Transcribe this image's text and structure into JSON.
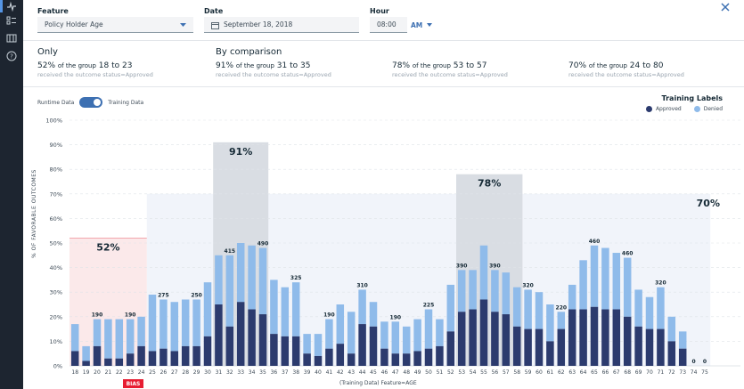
{
  "header": {
    "feature_label": "Feature",
    "feature_value": "Policy Holder Age",
    "date_label": "Date",
    "date_value": "September 18, 2018",
    "hour_label": "Hour",
    "hour_value": "08:00",
    "ampm_value": "AM"
  },
  "summary": {
    "only_title": "Only",
    "only": {
      "pct": "52%",
      "text": "of the group",
      "range": "18 to 23",
      "sub": "received the outcome status=Approved"
    },
    "comparison_title": "By comparison",
    "comparisons": [
      {
        "pct": "91%",
        "text": "of the group",
        "range": "31 to 35",
        "sub": "received the outcome status=Approved"
      },
      {
        "pct": "78%",
        "text": "of the group",
        "range": "53 to 57",
        "sub": "received the outcome status=Approved"
      },
      {
        "pct": "70%",
        "text": "of the group",
        "range": "24 to 80",
        "sub": "received the outcome status=Approved"
      }
    ]
  },
  "controls": {
    "runtime_label": "Runtime Data",
    "training_label": "Training Data",
    "toggle_on": true
  },
  "legend": {
    "title": "Training Labels",
    "items": [
      {
        "label": "Approved",
        "color": "#2c3b6e"
      },
      {
        "label": "Denied",
        "color": "#8fbbea"
      }
    ]
  },
  "chart_data": {
    "type": "bar",
    "stacked": true,
    "ylabel": "% OF FAVORABLE OUTCOMES",
    "xlabel": "(Training Data) Feature=AGE",
    "bias_label": "BIAS",
    "yticks": [
      "0%",
      "10%",
      "20%",
      "30%",
      "40%",
      "50%",
      "60%",
      "70%",
      "80%",
      "90%",
      "100%"
    ],
    "ylim": [
      0,
      100
    ],
    "grid": true,
    "categories": [
      "18",
      "19",
      "20",
      "21",
      "22",
      "23",
      "24",
      "25",
      "26",
      "27",
      "28",
      "29",
      "30",
      "31",
      "32",
      "33",
      "34",
      "35",
      "36",
      "37",
      "38",
      "39",
      "40",
      "41",
      "42",
      "43",
      "44",
      "45",
      "46",
      "47",
      "48",
      "49",
      "50",
      "51",
      "52",
      "53",
      "54",
      "55",
      "56",
      "57",
      "58",
      "59",
      "60",
      "61",
      "62",
      "63",
      "64",
      "65",
      "66",
      "67",
      "68",
      "69",
      "70",
      "71",
      "72",
      "73",
      "74",
      "75"
    ],
    "series": [
      {
        "name": "Approved",
        "color": "#2c3b6e",
        "values": [
          6,
          2,
          8,
          3,
          3,
          5,
          8,
          6,
          7,
          6,
          8,
          8,
          12,
          25,
          16,
          26,
          23,
          21,
          13,
          12,
          12,
          5,
          4,
          7,
          9,
          5,
          17,
          16,
          7,
          5,
          5,
          6,
          7,
          8,
          14,
          22,
          23,
          27,
          22,
          21,
          16,
          15,
          15,
          10,
          15,
          23,
          23,
          24,
          23,
          23,
          20,
          16,
          15,
          15,
          10,
          7,
          0,
          0
        ]
      },
      {
        "name": "Denied",
        "color": "#8fbbea",
        "values": [
          11,
          6,
          11,
          16,
          16,
          14,
          12,
          23,
          20,
          20,
          19,
          19,
          22,
          20,
          29,
          24,
          26,
          27,
          22,
          20,
          22,
          8,
          9,
          12,
          16,
          17,
          14,
          10,
          11,
          13,
          11,
          13,
          16,
          11,
          19,
          17,
          16,
          22,
          17,
          17,
          16,
          16,
          15,
          15,
          7,
          10,
          20,
          25,
          25,
          23,
          24,
          15,
          13,
          17,
          10,
          7,
          0,
          0
        ]
      }
    ],
    "bar_labels": [
      {
        "category": "20",
        "text": "190"
      },
      {
        "category": "23",
        "text": "190"
      },
      {
        "category": "26",
        "text": "275"
      },
      {
        "category": "29",
        "text": "250"
      },
      {
        "category": "32",
        "text": "415"
      },
      {
        "category": "35",
        "text": "490"
      },
      {
        "category": "38",
        "text": "325"
      },
      {
        "category": "41",
        "text": "190"
      },
      {
        "category": "44",
        "text": "310"
      },
      {
        "category": "47",
        "text": "190"
      },
      {
        "category": "50",
        "text": "225"
      },
      {
        "category": "53",
        "text": "390"
      },
      {
        "category": "56",
        "text": "390"
      },
      {
        "category": "59",
        "text": "320"
      },
      {
        "category": "62",
        "text": "220"
      },
      {
        "category": "65",
        "text": "460"
      },
      {
        "category": "68",
        "text": "460"
      },
      {
        "category": "71",
        "text": "320"
      },
      {
        "category": "74",
        "text": "0"
      },
      {
        "category": "75",
        "text": "0"
      }
    ],
    "regions": [
      {
        "from": "18",
        "to": "24",
        "value": 52,
        "label": "52%",
        "style": "bias"
      },
      {
        "from": "31",
        "to": "35",
        "value": 91,
        "label": "91%",
        "style": "compare"
      },
      {
        "from": "53",
        "to": "58",
        "value": 78,
        "label": "78%",
        "style": "compare"
      },
      {
        "from": "25",
        "to": "75",
        "value": 70,
        "label": "70%",
        "style": "overall"
      }
    ]
  }
}
